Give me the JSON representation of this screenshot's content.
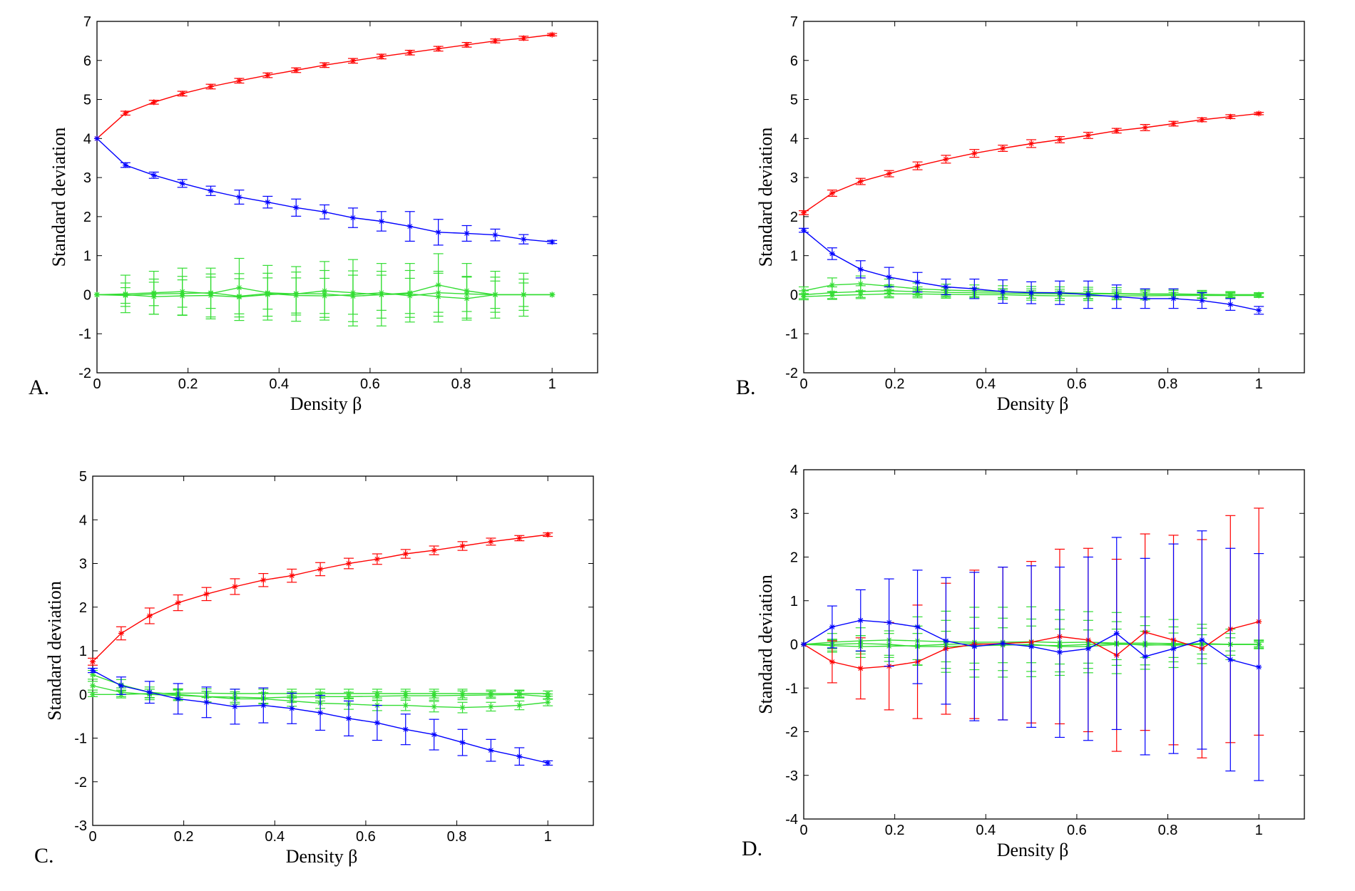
{
  "colors": {
    "red": "#ff0000",
    "blue": "#0000ff",
    "green": "#33dd33"
  },
  "chart_data": [
    {
      "id": "A",
      "panel_label": "A.",
      "type": "line",
      "title": "",
      "xlabel": "Density β",
      "ylabel": "Standard deviation",
      "xlim": [
        0,
        1.1
      ],
      "ylim": [
        -2,
        7
      ],
      "xticks": [
        0,
        0.2,
        0.4,
        0.6,
        0.8,
        1
      ],
      "xtick_labels": [
        "0",
        "0.2",
        "0.4",
        "0.6",
        "0.8",
        "1"
      ],
      "yticks": [
        -2,
        -1,
        0,
        1,
        2,
        3,
        4,
        5,
        6,
        7
      ],
      "ytick_labels": [
        "-2",
        "-1",
        "0",
        "1",
        "2",
        "3",
        "4",
        "5",
        "6",
        "7"
      ],
      "x": [
        0,
        0.0625,
        0.125,
        0.1875,
        0.25,
        0.3125,
        0.375,
        0.4375,
        0.5,
        0.5625,
        0.625,
        0.6875,
        0.75,
        0.8125,
        0.875,
        0.9375,
        1
      ],
      "series": [
        {
          "name": "red",
          "color": "red",
          "values": [
            4.0,
            4.65,
            4.93,
            5.15,
            5.33,
            5.48,
            5.62,
            5.75,
            5.88,
            5.99,
            6.1,
            6.2,
            6.3,
            6.4,
            6.5,
            6.57,
            6.66
          ],
          "errors": [
            0,
            0.05,
            0.05,
            0.06,
            0.06,
            0.06,
            0.06,
            0.06,
            0.06,
            0.06,
            0.06,
            0.06,
            0.06,
            0.06,
            0.05,
            0.05,
            0.03
          ]
        },
        {
          "name": "blue",
          "color": "blue",
          "values": [
            4.0,
            3.32,
            3.06,
            2.85,
            2.66,
            2.5,
            2.37,
            2.23,
            2.12,
            1.97,
            1.88,
            1.75,
            1.6,
            1.57,
            1.53,
            1.42,
            1.35
          ],
          "errors": [
            0,
            0.06,
            0.08,
            0.1,
            0.12,
            0.18,
            0.15,
            0.22,
            0.18,
            0.25,
            0.25,
            0.38,
            0.33,
            0.2,
            0.15,
            0.12,
            0.04
          ]
        },
        {
          "name": "green-1",
          "color": "green",
          "values": [
            0,
            0.02,
            0.05,
            0.08,
            0.03,
            0.18,
            0.05,
            0.02,
            0.1,
            0.05,
            0.0,
            0.05,
            0.25,
            0.1,
            0.0,
            0.0,
            0.0
          ],
          "errors": [
            0,
            0.48,
            0.55,
            0.6,
            0.65,
            0.75,
            0.7,
            0.7,
            0.75,
            0.85,
            0.8,
            0.75,
            0.8,
            0.7,
            0.6,
            0.55,
            0
          ]
        },
        {
          "name": "green-2",
          "color": "green",
          "values": [
            0,
            0.0,
            -0.05,
            -0.03,
            -0.02,
            -0.06,
            0.0,
            0.03,
            0.02,
            -0.04,
            0.0,
            0.02,
            -0.05,
            -0.1,
            0.0,
            0.0,
            0.0
          ],
          "errors": [
            0,
            0.3,
            0.45,
            0.5,
            0.55,
            0.6,
            0.55,
            0.55,
            0.6,
            0.65,
            0.6,
            0.6,
            0.65,
            0.55,
            0.45,
            0.4,
            0
          ]
        },
        {
          "name": "green-3",
          "color": "green",
          "values": [
            0,
            -0.02,
            0.02,
            0.03,
            0.05,
            -0.04,
            0.03,
            -0.02,
            -0.03,
            0.0,
            0.05,
            -0.03,
            0.05,
            0.02,
            0.0,
            0.0,
            0.0
          ],
          "errors": [
            0,
            0.2,
            0.3,
            0.35,
            0.4,
            0.45,
            0.4,
            0.45,
            0.45,
            0.5,
            0.45,
            0.45,
            0.5,
            0.45,
            0.35,
            0.3,
            0
          ]
        }
      ]
    },
    {
      "id": "B",
      "panel_label": "B.",
      "type": "line",
      "title": "",
      "xlabel": "Density β",
      "ylabel": "Standard deviation",
      "xlim": [
        0,
        1.1
      ],
      "ylim": [
        -2,
        7
      ],
      "xticks": [
        0,
        0.2,
        0.4,
        0.6,
        0.8,
        1
      ],
      "xtick_labels": [
        "0",
        "0.2",
        "0.4",
        "0.6",
        "0.8",
        "1"
      ],
      "yticks": [
        -2,
        -1,
        0,
        1,
        2,
        3,
        4,
        5,
        6,
        7
      ],
      "ytick_labels": [
        "-2",
        "-1",
        "0",
        "1",
        "2",
        "3",
        "4",
        "5",
        "6",
        "7"
      ],
      "x": [
        0,
        0.0625,
        0.125,
        0.1875,
        0.25,
        0.3125,
        0.375,
        0.4375,
        0.5,
        0.5625,
        0.625,
        0.6875,
        0.75,
        0.8125,
        0.875,
        0.9375,
        1
      ],
      "series": [
        {
          "name": "red",
          "color": "red",
          "values": [
            2.1,
            2.6,
            2.9,
            3.1,
            3.3,
            3.47,
            3.62,
            3.75,
            3.87,
            3.97,
            4.08,
            4.2,
            4.28,
            4.38,
            4.48,
            4.56,
            4.64
          ],
          "errors": [
            0.05,
            0.08,
            0.08,
            0.08,
            0.1,
            0.1,
            0.1,
            0.08,
            0.1,
            0.08,
            0.08,
            0.06,
            0.08,
            0.06,
            0.05,
            0.05,
            0.03
          ]
        },
        {
          "name": "blue",
          "color": "blue",
          "values": [
            1.65,
            1.05,
            0.65,
            0.45,
            0.32,
            0.2,
            0.15,
            0.08,
            0.05,
            0.05,
            0.0,
            -0.05,
            -0.1,
            -0.1,
            -0.15,
            -0.25,
            -0.4
          ],
          "errors": [
            0.05,
            0.15,
            0.22,
            0.25,
            0.25,
            0.2,
            0.25,
            0.3,
            0.28,
            0.3,
            0.35,
            0.3,
            0.25,
            0.25,
            0.2,
            0.15,
            0.1
          ]
        },
        {
          "name": "green-1",
          "color": "green",
          "values": [
            0.1,
            0.25,
            0.28,
            0.22,
            0.15,
            0.12,
            0.1,
            0.08,
            0.06,
            0.05,
            0.04,
            0.03,
            0.02,
            0.02,
            0.01,
            0.0,
            0.0
          ],
          "errors": [
            0.1,
            0.18,
            0.2,
            0.18,
            0.15,
            0.15,
            0.15,
            0.15,
            0.15,
            0.15,
            0.15,
            0.15,
            0.12,
            0.12,
            0.1,
            0.08,
            0.05
          ]
        },
        {
          "name": "green-2",
          "color": "green",
          "values": [
            0.0,
            0.05,
            0.08,
            0.1,
            0.08,
            0.06,
            0.05,
            0.04,
            0.03,
            0.02,
            0.02,
            0.02,
            0.01,
            0.01,
            0.0,
            0.0,
            0.0
          ],
          "errors": [
            0.1,
            0.15,
            0.15,
            0.15,
            0.12,
            0.12,
            0.12,
            0.12,
            0.12,
            0.12,
            0.12,
            0.1,
            0.1,
            0.1,
            0.08,
            0.06,
            0.05
          ]
        },
        {
          "name": "green-3",
          "color": "green",
          "values": [
            -0.05,
            -0.02,
            0.0,
            0.02,
            0.02,
            0.01,
            0.0,
            0.0,
            -0.02,
            -0.03,
            -0.03,
            -0.03,
            -0.03,
            -0.02,
            -0.02,
            -0.02,
            -0.02
          ],
          "errors": [
            0.08,
            0.1,
            0.1,
            0.1,
            0.1,
            0.1,
            0.1,
            0.12,
            0.12,
            0.12,
            0.12,
            0.1,
            0.1,
            0.08,
            0.08,
            0.06,
            0.05
          ]
        }
      ]
    },
    {
      "id": "C",
      "panel_label": "C.",
      "type": "line",
      "title": "",
      "xlabel": "Density β",
      "ylabel": "Standard deviation",
      "xlim": [
        0,
        1.1
      ],
      "ylim": [
        -3,
        5
      ],
      "xticks": [
        0,
        0.2,
        0.4,
        0.6,
        0.8,
        1
      ],
      "xtick_labels": [
        "0",
        "0.2",
        "0.4",
        "0.6",
        "0.8",
        "1"
      ],
      "yticks": [
        -3,
        -2,
        -1,
        0,
        1,
        2,
        3,
        4,
        5
      ],
      "ytick_labels": [
        "-3",
        "-2",
        "-1",
        "0",
        "1",
        "2",
        "3",
        "4",
        "5"
      ],
      "x": [
        0,
        0.0625,
        0.125,
        0.1875,
        0.25,
        0.3125,
        0.375,
        0.4375,
        0.5,
        0.5625,
        0.625,
        0.6875,
        0.75,
        0.8125,
        0.875,
        0.9375,
        1
      ],
      "series": [
        {
          "name": "red",
          "color": "red",
          "values": [
            0.75,
            1.4,
            1.8,
            2.1,
            2.3,
            2.47,
            2.62,
            2.72,
            2.87,
            3.0,
            3.1,
            3.22,
            3.3,
            3.4,
            3.5,
            3.58,
            3.66
          ],
          "errors": [
            0.08,
            0.15,
            0.18,
            0.18,
            0.15,
            0.18,
            0.15,
            0.15,
            0.15,
            0.12,
            0.12,
            0.1,
            0.1,
            0.1,
            0.08,
            0.06,
            0.04
          ]
        },
        {
          "name": "blue",
          "color": "blue",
          "values": [
            0.55,
            0.2,
            0.05,
            -0.1,
            -0.18,
            -0.28,
            -0.25,
            -0.32,
            -0.42,
            -0.55,
            -0.65,
            -0.8,
            -0.92,
            -1.1,
            -1.28,
            -1.42,
            -1.57
          ],
          "errors": [
            0.05,
            0.2,
            0.25,
            0.35,
            0.35,
            0.4,
            0.4,
            0.35,
            0.4,
            0.4,
            0.4,
            0.35,
            0.35,
            0.3,
            0.25,
            0.2,
            0.05
          ]
        },
        {
          "name": "green-1",
          "color": "green",
          "values": [
            0.45,
            0.22,
            0.05,
            0.0,
            -0.05,
            -0.1,
            -0.1,
            -0.15,
            -0.2,
            -0.22,
            -0.25,
            -0.25,
            -0.28,
            -0.3,
            -0.28,
            -0.25,
            -0.18
          ],
          "errors": [
            0.1,
            0.12,
            0.12,
            0.12,
            0.12,
            0.12,
            0.12,
            0.12,
            0.12,
            0.12,
            0.12,
            0.12,
            0.12,
            0.12,
            0.1,
            0.1,
            0.08
          ]
        },
        {
          "name": "green-2",
          "color": "green",
          "values": [
            0.2,
            0.05,
            0.0,
            -0.02,
            -0.05,
            -0.06,
            -0.08,
            -0.06,
            -0.05,
            -0.05,
            -0.04,
            -0.03,
            -0.03,
            -0.02,
            -0.01,
            0.0,
            -0.05
          ],
          "errors": [
            0.1,
            0.1,
            0.12,
            0.12,
            0.12,
            0.12,
            0.12,
            0.12,
            0.1,
            0.1,
            0.1,
            0.1,
            0.1,
            0.1,
            0.08,
            0.08,
            0.06
          ]
        },
        {
          "name": "green-3",
          "color": "green",
          "values": [
            0.0,
            0.0,
            0.02,
            0.03,
            0.03,
            0.02,
            0.02,
            0.02,
            0.02,
            0.02,
            0.02,
            0.02,
            0.02,
            0.02,
            0.02,
            0.02,
            0.02
          ],
          "errors": [
            0.05,
            0.08,
            0.1,
            0.1,
            0.1,
            0.1,
            0.1,
            0.1,
            0.1,
            0.1,
            0.1,
            0.1,
            0.1,
            0.1,
            0.08,
            0.08,
            0.06
          ]
        }
      ]
    },
    {
      "id": "D",
      "panel_label": "D.",
      "type": "line",
      "title": "",
      "xlabel": "Density β",
      "ylabel": "Standard deviation",
      "xlim": [
        0,
        1.1
      ],
      "ylim": [
        -4,
        4
      ],
      "xticks": [
        0,
        0.2,
        0.4,
        0.6,
        0.8,
        1
      ],
      "xtick_labels": [
        "0",
        "0.2",
        "0.4",
        "0.6",
        "0.8",
        "1"
      ],
      "yticks": [
        -4,
        -3,
        -2,
        -1,
        0,
        1,
        2,
        3,
        4
      ],
      "ytick_labels": [
        "-4",
        "-3",
        "-2",
        "-1",
        "0",
        "1",
        "2",
        "3",
        "4"
      ],
      "x": [
        0,
        0.0625,
        0.125,
        0.1875,
        0.25,
        0.3125,
        0.375,
        0.4375,
        0.5,
        0.5625,
        0.625,
        0.6875,
        0.75,
        0.8125,
        0.875,
        0.9375,
        1
      ],
      "series": [
        {
          "name": "red",
          "color": "red",
          "values": [
            0,
            -0.4,
            -0.55,
            -0.5,
            -0.4,
            -0.1,
            0.0,
            0.02,
            0.05,
            0.18,
            0.1,
            -0.25,
            0.28,
            0.1,
            -0.1,
            0.35,
            0.52
          ],
          "errors": [
            0,
            0.48,
            0.7,
            1.0,
            1.3,
            1.5,
            1.7,
            1.75,
            1.85,
            2.0,
            2.1,
            2.2,
            2.25,
            2.4,
            2.5,
            2.6,
            2.6
          ]
        },
        {
          "name": "blue",
          "color": "blue",
          "values": [
            0,
            0.4,
            0.55,
            0.5,
            0.4,
            0.08,
            -0.05,
            0.02,
            -0.05,
            -0.18,
            -0.1,
            0.25,
            -0.28,
            -0.1,
            0.1,
            -0.35,
            -0.52
          ],
          "errors": [
            0,
            0.48,
            0.7,
            1.0,
            1.3,
            1.45,
            1.7,
            1.75,
            1.85,
            1.95,
            2.1,
            2.2,
            2.25,
            2.4,
            2.5,
            2.55,
            2.6
          ]
        },
        {
          "name": "green-1",
          "color": "green",
          "values": [
            0,
            0.05,
            0.08,
            0.1,
            0.08,
            0.06,
            0.05,
            0.05,
            0.06,
            0.04,
            0.05,
            0.03,
            0.03,
            0.02,
            0.01,
            0.0,
            0.0
          ],
          "errors": [
            0,
            0.2,
            0.3,
            0.4,
            0.55,
            0.7,
            0.8,
            0.8,
            0.8,
            0.75,
            0.7,
            0.7,
            0.6,
            0.55,
            0.45,
            0.35,
            0.1
          ]
        },
        {
          "name": "green-2",
          "color": "green",
          "values": [
            0,
            -0.03,
            -0.05,
            -0.04,
            -0.03,
            0.0,
            0.02,
            0.0,
            -0.02,
            -0.03,
            0.0,
            0.02,
            -0.02,
            0.0,
            0.02,
            0.0,
            0.0
          ],
          "errors": [
            0,
            0.15,
            0.25,
            0.35,
            0.45,
            0.55,
            0.6,
            0.6,
            0.6,
            0.6,
            0.55,
            0.5,
            0.45,
            0.4,
            0.35,
            0.25,
            0.08
          ]
        },
        {
          "name": "green-3",
          "color": "green",
          "values": [
            0,
            0.0,
            0.02,
            0.0,
            -0.05,
            -0.05,
            -0.03,
            -0.02,
            0.0,
            -0.05,
            -0.05,
            0.0,
            0.0,
            -0.02,
            0.0,
            0.0,
            0.0
          ],
          "errors": [
            0,
            0.1,
            0.18,
            0.25,
            0.3,
            0.35,
            0.4,
            0.4,
            0.42,
            0.4,
            0.38,
            0.35,
            0.3,
            0.28,
            0.22,
            0.15,
            0.05
          ]
        }
      ]
    }
  ]
}
